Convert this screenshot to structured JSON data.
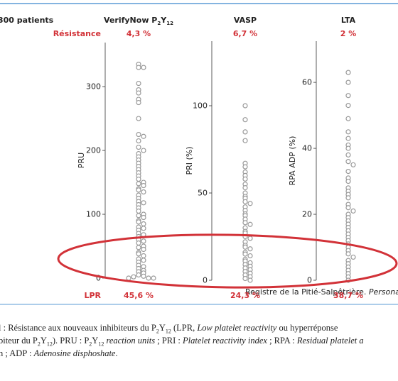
{
  "header": "300 patients",
  "row_labels": {
    "resistance": "Résistance",
    "lpr": "LPR"
  },
  "chart_data": [
    {
      "type": "strip",
      "title_parts": [
        "VerifyNow P",
        "2",
        "Y",
        "12"
      ],
      "ylabel": "PRU",
      "resistance": "4,3 %",
      "lpr": "45,6 %",
      "ylim": [
        0,
        369
      ],
      "yticks": [
        0,
        100,
        200,
        300
      ],
      "color": "#999999",
      "values": [
        335,
        330,
        330,
        305,
        295,
        290,
        280,
        275,
        250,
        225,
        222,
        215,
        205,
        200,
        195,
        190,
        185,
        180,
        175,
        170,
        165,
        160,
        155,
        150,
        148,
        145,
        140,
        138,
        135,
        130,
        125,
        120,
        118,
        115,
        110,
        105,
        100,
        98,
        95,
        90,
        88,
        85,
        80,
        78,
        75,
        70,
        68,
        65,
        60,
        58,
        55,
        50,
        48,
        45,
        40,
        38,
        35,
        30,
        28,
        25,
        20,
        18,
        15,
        12,
        10,
        8,
        5,
        3,
        2,
        0,
        0,
        0
      ]
    },
    {
      "type": "strip",
      "title": "VASP",
      "ylabel": "PRI (%)",
      "resistance": "6,7 %",
      "lpr": "24,3 %",
      "ylim": [
        0,
        137
      ],
      "yticks": [
        0,
        50,
        100
      ],
      "color": "#999999",
      "values": [
        100,
        92,
        85,
        80,
        67,
        65,
        62,
        60,
        58,
        55,
        53,
        50,
        48,
        47,
        45,
        44,
        42,
        40,
        38,
        37,
        35,
        33,
        32,
        30,
        28,
        27,
        25,
        24,
        22,
        20,
        19,
        18,
        16,
        15,
        14,
        12,
        11,
        10,
        9,
        8,
        7,
        6,
        5,
        4,
        3,
        2,
        1,
        0
      ]
    },
    {
      "type": "strip",
      "title": "LTA",
      "ylabel": "RPA ADP (%)",
      "resistance": "2 %",
      "lpr": "38,7 %",
      "ylim": [
        0,
        72.5
      ],
      "yticks": [
        0,
        20,
        40,
        60
      ],
      "color": "#999999",
      "values": [
        63,
        60,
        56,
        53,
        49,
        45,
        43,
        41,
        40,
        38,
        36,
        35,
        33,
        31,
        30,
        28,
        27,
        26,
        25,
        23,
        22,
        21,
        20,
        19,
        18,
        17,
        16,
        15,
        14,
        13,
        12,
        11,
        10,
        9,
        8,
        7,
        6,
        5,
        4,
        3,
        2,
        1,
        0
      ]
    }
  ],
  "source": {
    "text": "Registre de la Pitié-Salpêtrière. ",
    "italic": "Personal data"
  },
  "caption": [
    [
      "l : Résistance aux nouveaux inhibiteurs du P",
      "2",
      "Y",
      "12",
      " (LPR, ",
      "Low platelet reactivity",
      " ou hyperréponse"
    ],
    [
      "biteur du P",
      "2",
      "Y",
      "12",
      "). PRU : P",
      "2",
      "Y",
      "12",
      " ",
      "reaction units",
      " ; PRI : ",
      "Platelet reactivity index",
      " ; RPA : ",
      "Residual platelet a"
    ],
    [
      "n ; ADP : ",
      "Adenosine disphoshate",
      "."
    ]
  ]
}
